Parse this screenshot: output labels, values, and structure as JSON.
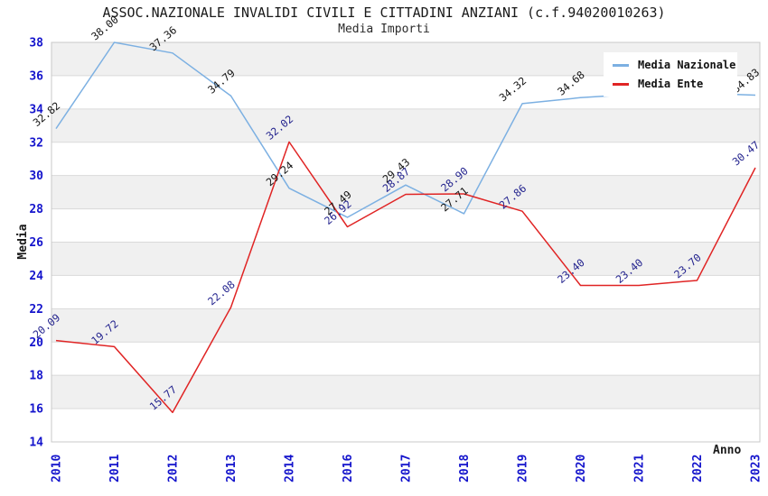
{
  "chart_data": {
    "type": "line",
    "title": "ASSOC.NAZIONALE INVALIDI CIVILI E CITTADINI ANZIANI (c.f.94020010263)",
    "subtitle": "Media Importi",
    "xlabel": "Anno",
    "ylabel": "Media",
    "ylim": [
      14,
      38
    ],
    "ytick_step": 2,
    "yticks": [
      14,
      16,
      18,
      20,
      22,
      24,
      26,
      28,
      30,
      32,
      34,
      36,
      38
    ],
    "grid": "alternating-horizontal-bands",
    "legend_position": "top-right",
    "categories": [
      "2010",
      "2011",
      "2012",
      "2013",
      "2014",
      "2016",
      "2017",
      "2018",
      "2019",
      "2020",
      "2021",
      "2022",
      "2023"
    ],
    "series": [
      {
        "name": "Media Nazionale",
        "color": "#7cb0e2",
        "label_color": "#141414",
        "values": [
          32.82,
          38.0,
          37.36,
          34.79,
          29.24,
          27.49,
          29.43,
          27.71,
          34.32,
          34.68,
          34.9,
          34.95,
          34.83
        ],
        "labels": [
          "32.82",
          "38.00",
          "37.36",
          "34.79",
          "29.24",
          "27.49",
          "29.43",
          "27.71",
          "34.32",
          "34.68",
          null,
          null,
          "34.83"
        ]
      },
      {
        "name": "Media Ente",
        "color": "#e02424",
        "label_color": "#23238e",
        "values": [
          20.09,
          19.72,
          15.77,
          22.08,
          32.02,
          26.92,
          28.87,
          28.9,
          27.86,
          23.4,
          23.4,
          23.7,
          30.47
        ],
        "labels": [
          "20.09",
          "19.72",
          "15.77",
          "22.08",
          "32.02",
          "26.92",
          "28.87",
          "28.90",
          "27.86",
          "23.40",
          "23.40",
          "23.70",
          "30.47"
        ]
      }
    ],
    "colors": {
      "band": "#f0f0f0",
      "gridline": "#dadada",
      "plot_border": "#c8c8c8",
      "tick_label": "#1414cc",
      "axis_title": "#1a1a1a"
    }
  }
}
